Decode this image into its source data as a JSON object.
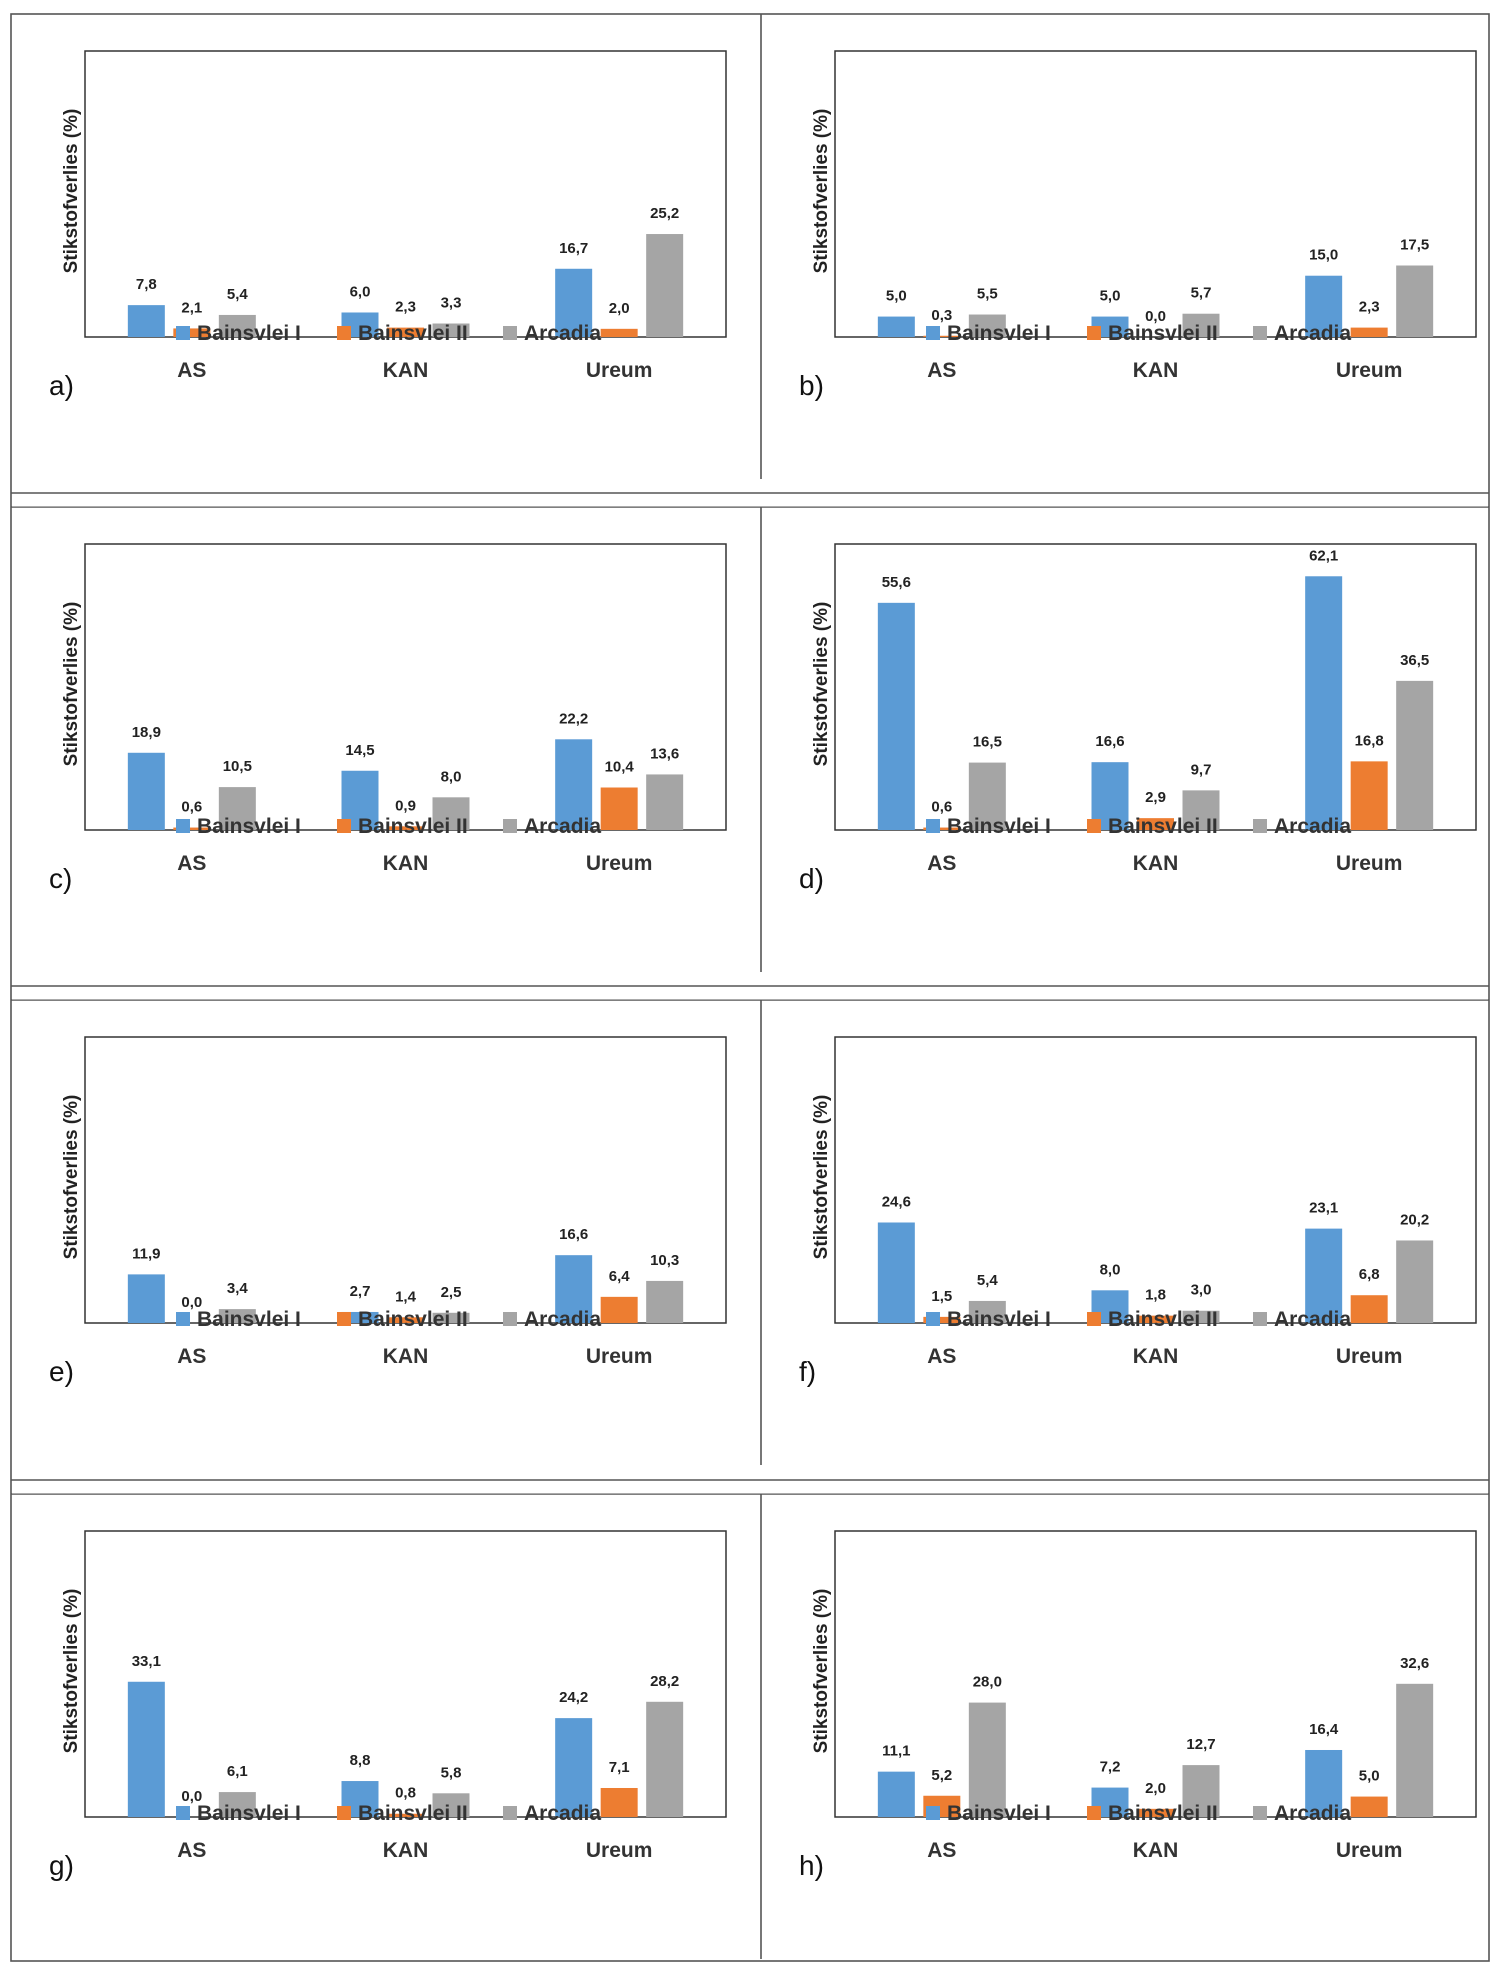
{
  "colors": {
    "bainsvlei_i": "#5b9bd5",
    "bainsvlei_ii": "#ed7d31",
    "arcadia": "#a5a5a5"
  },
  "chart_data": [
    {
      "type": "bar",
      "panel_label": "a)",
      "ylabel": "Stikstofverlies (%)",
      "categories": [
        "AS",
        "KAN",
        "Ureum"
      ],
      "series": [
        {
          "name": "Bainsvlei I",
          "values": [
            7.8,
            6.0,
            16.7
          ],
          "labels": [
            "7,8",
            "6,0",
            "16,7"
          ]
        },
        {
          "name": "Bainsvlei II",
          "values": [
            2.1,
            2.3,
            2.0
          ],
          "labels": [
            "2,1",
            "2,3",
            "2,0"
          ]
        },
        {
          "name": "Arcadia",
          "values": [
            5.4,
            3.3,
            25.2
          ],
          "labels": [
            "5,4",
            "3,3",
            "25,2"
          ]
        }
      ],
      "ylim": [
        0,
        70
      ],
      "legend": "bottom",
      "grid": false
    },
    {
      "type": "bar",
      "panel_label": "b)",
      "ylabel": "Stikstofverlies (%)",
      "categories": [
        "AS",
        "KAN",
        "Ureum"
      ],
      "series": [
        {
          "name": "Bainsvlei I",
          "values": [
            5.0,
            5.0,
            15.0
          ],
          "labels": [
            "5,0",
            "5,0",
            "15,0"
          ]
        },
        {
          "name": "Bainsvlei II",
          "values": [
            0.3,
            0.0,
            2.3
          ],
          "labels": [
            "0,3",
            "0,0",
            "2,3"
          ]
        },
        {
          "name": "Arcadia",
          "values": [
            5.5,
            5.7,
            17.5
          ],
          "labels": [
            "5,5",
            "5,7",
            "17,5"
          ]
        }
      ],
      "ylim": [
        0,
        70
      ],
      "legend": "bottom",
      "grid": false
    },
    {
      "type": "bar",
      "panel_label": "c)",
      "ylabel": "Stikstofverlies (%)",
      "categories": [
        "AS",
        "KAN",
        "Ureum"
      ],
      "series": [
        {
          "name": "Bainsvlei I",
          "values": [
            18.9,
            14.5,
            22.2
          ],
          "labels": [
            "18,9",
            "14,5",
            "22,2"
          ]
        },
        {
          "name": "Bainsvlei II",
          "values": [
            0.6,
            0.9,
            10.4
          ],
          "labels": [
            "0,6",
            "0,9",
            "10,4"
          ]
        },
        {
          "name": "Arcadia",
          "values": [
            10.5,
            8.0,
            13.6
          ],
          "labels": [
            "10,5",
            "8,0",
            "13,6"
          ]
        }
      ],
      "ylim": [
        0,
        70
      ],
      "legend": "bottom",
      "grid": false
    },
    {
      "type": "bar",
      "panel_label": "d)",
      "ylabel": "Stikstofverlies (%)",
      "categories": [
        "AS",
        "KAN",
        "Ureum"
      ],
      "series": [
        {
          "name": "Bainsvlei I",
          "values": [
            55.6,
            16.6,
            62.1
          ],
          "labels": [
            "55,6",
            "16,6",
            "62,1"
          ]
        },
        {
          "name": "Bainsvlei II",
          "values": [
            0.6,
            2.9,
            16.8
          ],
          "labels": [
            "0,6",
            "2,9",
            "16,8"
          ]
        },
        {
          "name": "Arcadia",
          "values": [
            16.5,
            9.7,
            36.5
          ],
          "labels": [
            "16,5",
            "9,7",
            "36,5"
          ]
        }
      ],
      "ylim": [
        0,
        70
      ],
      "legend": "bottom",
      "grid": false
    },
    {
      "type": "bar",
      "panel_label": "e)",
      "ylabel": "Stikstofverlies (%)",
      "categories": [
        "AS",
        "KAN",
        "Ureum"
      ],
      "series": [
        {
          "name": "Bainsvlei I",
          "values": [
            11.9,
            2.7,
            16.6
          ],
          "labels": [
            "11,9",
            "2,7",
            "16,6"
          ]
        },
        {
          "name": "Bainsvlei II",
          "values": [
            0.0,
            1.4,
            6.4
          ],
          "labels": [
            "0,0",
            "1,4",
            "6,4"
          ]
        },
        {
          "name": "Arcadia",
          "values": [
            3.4,
            2.5,
            10.3
          ],
          "labels": [
            "3,4",
            "2,5",
            "10,3"
          ]
        }
      ],
      "ylim": [
        0,
        70
      ],
      "legend": "bottom",
      "grid": false
    },
    {
      "type": "bar",
      "panel_label": "f)",
      "ylabel": "Stikstofverlies (%)",
      "categories": [
        "AS",
        "KAN",
        "Ureum"
      ],
      "series": [
        {
          "name": "Bainsvlei I",
          "values": [
            24.6,
            8.0,
            23.1
          ],
          "labels": [
            "24,6",
            "8,0",
            "23,1"
          ]
        },
        {
          "name": "Bainsvlei II",
          "values": [
            1.5,
            1.8,
            6.8
          ],
          "labels": [
            "1,5",
            "1,8",
            "6,8"
          ]
        },
        {
          "name": "Arcadia",
          "values": [
            5.4,
            3.0,
            20.2
          ],
          "labels": [
            "5,4",
            "3,0",
            "20,2"
          ]
        }
      ],
      "ylim": [
        0,
        70
      ],
      "legend": "bottom",
      "grid": false
    },
    {
      "type": "bar",
      "panel_label": "g)",
      "ylabel": "Stikstofverlies (%)",
      "categories": [
        "AS",
        "KAN",
        "Ureum"
      ],
      "series": [
        {
          "name": "Bainsvlei I",
          "values": [
            33.1,
            8.8,
            24.2
          ],
          "labels": [
            "33,1",
            "8,8",
            "24,2"
          ]
        },
        {
          "name": "Bainsvlei II",
          "values": [
            0.0,
            0.8,
            7.1
          ],
          "labels": [
            "0,0",
            "0,8",
            "7,1"
          ]
        },
        {
          "name": "Arcadia",
          "values": [
            6.1,
            5.8,
            28.2
          ],
          "labels": [
            "6,1",
            "5,8",
            "28,2"
          ]
        }
      ],
      "ylim": [
        0,
        70
      ],
      "legend": "bottom",
      "grid": false
    },
    {
      "type": "bar",
      "panel_label": "h)",
      "ylabel": "Stikstofverlies (%)",
      "categories": [
        "AS",
        "KAN",
        "Ureum"
      ],
      "series": [
        {
          "name": "Bainsvlei I",
          "values": [
            11.1,
            7.2,
            16.4
          ],
          "labels": [
            "11,1",
            "7,2",
            "16,4"
          ]
        },
        {
          "name": "Bainsvlei II",
          "values": [
            5.2,
            2.0,
            5.0
          ],
          "labels": [
            "5,2",
            "2,0",
            "5,0"
          ]
        },
        {
          "name": "Arcadia",
          "values": [
            28.0,
            12.7,
            32.6
          ],
          "labels": [
            "28,0",
            "12,7",
            "32,6"
          ]
        }
      ],
      "ylim": [
        0,
        70
      ],
      "legend": "bottom",
      "grid": false
    }
  ]
}
